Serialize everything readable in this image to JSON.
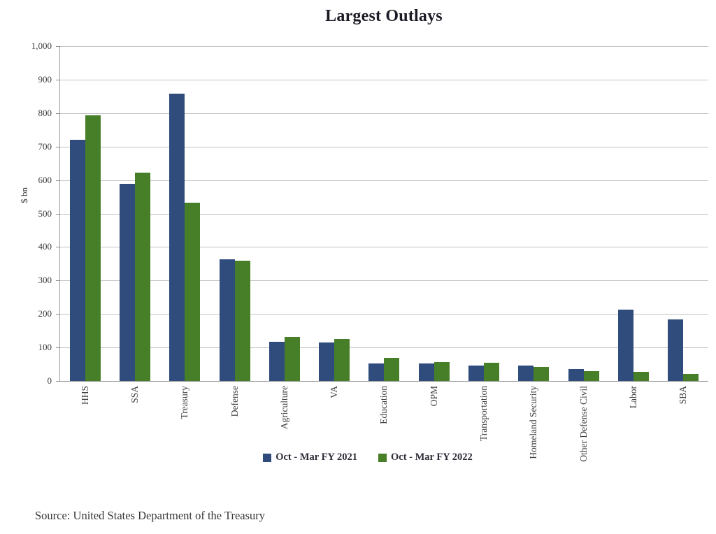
{
  "figure": {
    "source": "Source: United States Department of the Treasury"
  },
  "chart_data": {
    "type": "bar",
    "title": "Largest Outlays",
    "xlabel": "",
    "ylabel": "$ bn",
    "ylim": [
      0,
      1000
    ],
    "ytick_step": 100,
    "grid": "horizontal",
    "legend_position": "bottom",
    "categories": [
      "HHS",
      "SSA",
      "Treasury",
      "Defense",
      "Agriculture",
      "VA",
      "Education",
      "OPM",
      "Transportation",
      "Homeland Security",
      "Other Defense Civil",
      "Labor",
      "SBA"
    ],
    "series": [
      {
        "name": "Oct - Mar FY 2021",
        "color": "#2F4C7D",
        "values": [
          720,
          589,
          859,
          363,
          117,
          115,
          52,
          52,
          46,
          45,
          35,
          213,
          183
        ]
      },
      {
        "name": "Oct - Mar FY 2022",
        "color": "#467F27",
        "values": [
          793,
          623,
          532,
          359,
          131,
          126,
          69,
          57,
          54,
          41,
          30,
          28,
          20
        ]
      }
    ]
  }
}
